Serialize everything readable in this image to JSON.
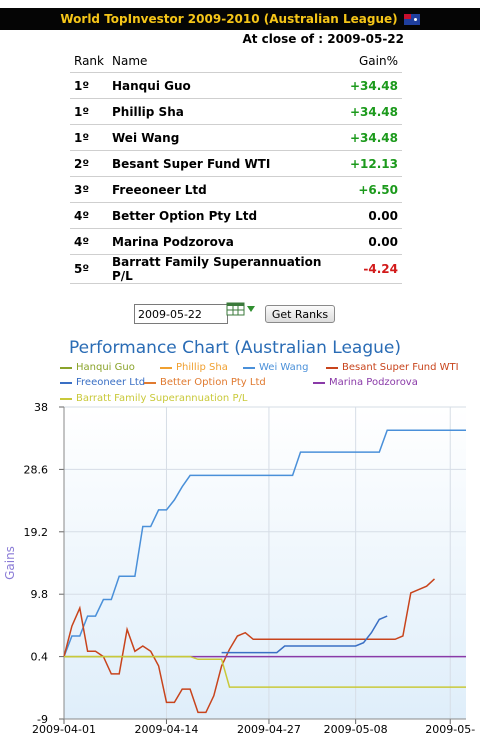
{
  "header": {
    "title": "World TopInvestor 2009-2010 (Australian League)",
    "flag_icon": "australia-flag-icon"
  },
  "close_line": "At close of : 2009-05-22",
  "table": {
    "headers": {
      "rank": "Rank",
      "name": "Name",
      "gain": "Gain%"
    },
    "rows": [
      {
        "rank": "1º",
        "name": "Hanqui Guo",
        "gain": "+34.48",
        "status": "pos"
      },
      {
        "rank": "1º",
        "name": "Phillip Sha",
        "gain": "+34.48",
        "status": "pos"
      },
      {
        "rank": "1º",
        "name": "Wei Wang",
        "gain": "+34.48",
        "status": "pos"
      },
      {
        "rank": "2º",
        "name": "Besant Super Fund WTI",
        "gain": "+12.13",
        "status": "pos"
      },
      {
        "rank": "3º",
        "name": "Freeoneer Ltd",
        "gain": "+6.50",
        "status": "pos"
      },
      {
        "rank": "4º",
        "name": "Better Option Pty Ltd",
        "gain": "0.00",
        "status": "zero"
      },
      {
        "rank": "4º",
        "name": "Marina Podzorova",
        "gain": "0.00",
        "status": "zero"
      },
      {
        "rank": "5º",
        "name": "Barratt Family Superannuation P/L",
        "gain": "-4.24",
        "status": "neg"
      }
    ],
    "colors": {
      "pos": "#1c9a1c",
      "neg": "#d21a1a",
      "zero": "#000000"
    }
  },
  "controls": {
    "date_value": "2009-05-22",
    "calendar_icon": "calendar-icon",
    "button_label": "Get Ranks"
  },
  "chart_data": {
    "type": "line",
    "title": "Performance Chart (Australian League)",
    "ylabel": "Gains",
    "xlabel": "",
    "ylim": [
      -9,
      38
    ],
    "yticks": [
      "38",
      "28.6",
      "19.2",
      "9.8",
      "0.4",
      "-9"
    ],
    "x_range": [
      "2009-04-01",
      "2009-05-22"
    ],
    "xticks": [
      {
        "date": "2009-04-01",
        "label": "2009-04-01"
      },
      {
        "date": "2009-04-14",
        "label": "2009-04-14"
      },
      {
        "date": "2009-04-27",
        "label": "2009-04-27"
      },
      {
        "date": "2009-05-08",
        "label": "2009-05-08"
      },
      {
        "date": "2009-05-20",
        "label": "2009-05-"
      }
    ],
    "grid": true,
    "legend_placement": "top",
    "series": [
      {
        "name": "Hanqui Guo",
        "color": "#8aa32a",
        "points": [
          [
            "2009-04-01",
            0.4
          ],
          [
            "2009-04-17",
            0.4
          ]
        ]
      },
      {
        "name": "Phillip Sha",
        "color": "#f0a030",
        "points": []
      },
      {
        "name": "Wei Wang",
        "color": "#4a90d9",
        "points": [
          [
            "2009-04-01",
            0.4
          ],
          [
            "2009-04-02",
            3.5
          ],
          [
            "2009-04-03",
            3.5
          ],
          [
            "2009-04-04",
            6.5
          ],
          [
            "2009-04-05",
            6.5
          ],
          [
            "2009-04-06",
            9.0
          ],
          [
            "2009-04-07",
            9.0
          ],
          [
            "2009-04-08",
            12.5
          ],
          [
            "2009-04-09",
            12.5
          ],
          [
            "2009-04-10",
            12.5
          ],
          [
            "2009-04-11",
            20.0
          ],
          [
            "2009-04-12",
            20.0
          ],
          [
            "2009-04-13",
            22.5
          ],
          [
            "2009-04-14",
            22.5
          ],
          [
            "2009-04-15",
            24.0
          ],
          [
            "2009-04-16",
            26.0
          ],
          [
            "2009-04-17",
            27.7
          ],
          [
            "2009-04-30",
            27.7
          ],
          [
            "2009-05-01",
            31.2
          ],
          [
            "2009-05-11",
            31.2
          ],
          [
            "2009-05-12",
            34.5
          ],
          [
            "2009-05-22",
            34.5
          ]
        ]
      },
      {
        "name": "Besant Super Fund WTI",
        "color": "#c8441c",
        "points": [
          [
            "2009-04-01",
            0.4
          ],
          [
            "2009-04-02",
            5.0
          ],
          [
            "2009-04-03",
            7.7
          ],
          [
            "2009-04-04",
            1.2
          ],
          [
            "2009-04-05",
            1.2
          ],
          [
            "2009-04-06",
            0.4
          ],
          [
            "2009-04-07",
            -2.2
          ],
          [
            "2009-04-08",
            -2.2
          ],
          [
            "2009-04-09",
            4.5
          ],
          [
            "2009-04-10",
            1.2
          ],
          [
            "2009-04-11",
            2.0
          ],
          [
            "2009-04-12",
            1.2
          ],
          [
            "2009-04-13",
            -1.0
          ],
          [
            "2009-04-14",
            -6.5
          ],
          [
            "2009-04-15",
            -6.5
          ],
          [
            "2009-04-16",
            -4.5
          ],
          [
            "2009-04-17",
            -4.5
          ],
          [
            "2009-04-18",
            -8.0
          ],
          [
            "2009-04-19",
            -8.0
          ],
          [
            "2009-04-20",
            -5.5
          ],
          [
            "2009-04-21",
            -1.0
          ],
          [
            "2009-04-22",
            1.5
          ],
          [
            "2009-04-23",
            3.5
          ],
          [
            "2009-04-24",
            4.0
          ],
          [
            "2009-04-25",
            3.0
          ],
          [
            "2009-05-13",
            3.0
          ],
          [
            "2009-05-14",
            3.5
          ],
          [
            "2009-05-15",
            10.0
          ],
          [
            "2009-05-16",
            10.5
          ],
          [
            "2009-05-17",
            11.0
          ],
          [
            "2009-05-18",
            12.1
          ]
        ]
      },
      {
        "name": "Freeoneer Ltd",
        "color": "#3a6fc4",
        "points": [
          [
            "2009-04-21",
            1.0
          ],
          [
            "2009-04-28",
            1.0
          ],
          [
            "2009-04-29",
            2.0
          ],
          [
            "2009-05-08",
            2.0
          ],
          [
            "2009-05-09",
            2.5
          ],
          [
            "2009-05-10",
            4.0
          ],
          [
            "2009-05-11",
            6.0
          ],
          [
            "2009-05-12",
            6.5
          ]
        ]
      },
      {
        "name": "Better Option Pty Ltd",
        "color": "#e07a30",
        "points": []
      },
      {
        "name": "Marina Podzorova",
        "color": "#8a3aa8",
        "points": [
          [
            "2009-04-17",
            0.4
          ],
          [
            "2009-05-22",
            0.4
          ]
        ]
      },
      {
        "name": "Barratt Family Superannuation P/L",
        "color": "#c9c93a",
        "points": [
          [
            "2009-04-01",
            0.4
          ],
          [
            "2009-04-17",
            0.4
          ],
          [
            "2009-04-18",
            0.0
          ],
          [
            "2009-04-20",
            0.0
          ],
          [
            "2009-04-21",
            0.0
          ],
          [
            "2009-04-22",
            -4.2
          ],
          [
            "2009-05-22",
            -4.2
          ]
        ]
      }
    ]
  }
}
